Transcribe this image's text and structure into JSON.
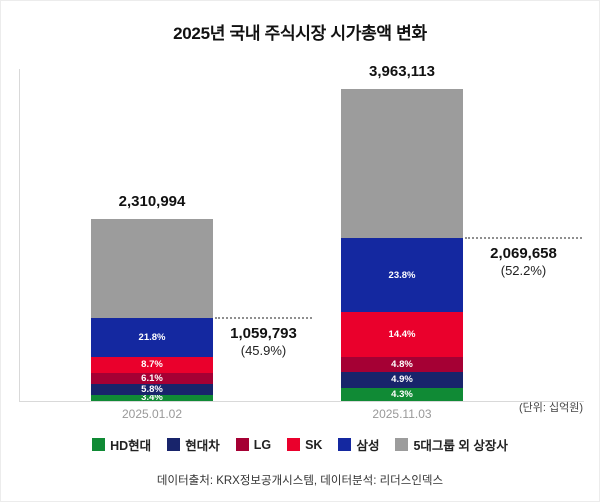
{
  "title": "2025년 국내 주식시장 시가총액 변화",
  "unit_note": "(단위: 십억원)",
  "footer": "데이터출처: KRX정보공개시스템, 데이터분석: 리더스인덱스",
  "chart_data": {
    "type": "bar",
    "stacked": true,
    "grid": false,
    "legend_position": "bottom",
    "categories": [
      "2025.01.02",
      "2025.11.03"
    ],
    "totals": [
      2310994,
      3963113
    ],
    "total_labels": [
      "2,310,994",
      "3,963,113"
    ],
    "series": [
      {
        "name": "HD현대",
        "color": "#108a35",
        "percents": [
          3.4,
          4.3
        ],
        "show_label": true
      },
      {
        "name": "현대차",
        "color": "#18246b",
        "percents": [
          5.8,
          4.9
        ],
        "show_label": true
      },
      {
        "name": "LG",
        "color": "#a50034",
        "percents": [
          6.1,
          4.8
        ],
        "show_label": true
      },
      {
        "name": "SK",
        "color": "#ea002c",
        "percents": [
          8.7,
          14.4
        ],
        "show_label": true
      },
      {
        "name": "삼성",
        "color": "#1428a0",
        "percents": [
          21.8,
          23.8
        ],
        "show_label": true
      },
      {
        "name": "5대그룹 외 상장사",
        "color": "#9c9c9c",
        "percents": [
          54.2,
          47.8
        ],
        "show_label": false
      }
    ],
    "annotations": [
      {
        "value": "1,059,793",
        "percent_label": "(45.9%)"
      },
      {
        "value": "2,069,658",
        "percent_label": "(52.2%)"
      }
    ]
  }
}
